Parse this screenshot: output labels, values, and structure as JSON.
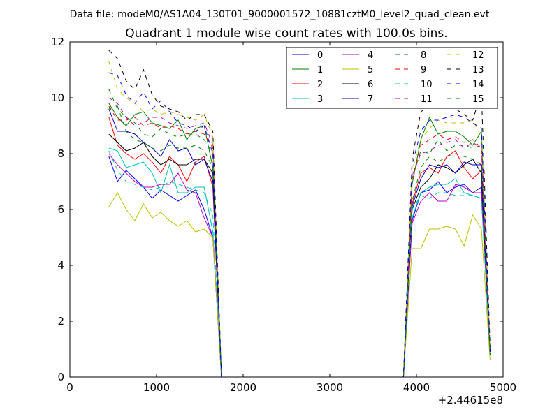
{
  "chart_data": {
    "type": "line",
    "suptitle": "Data file: modeM0/AS1A04_130T01_9000001572_10881cztM0_level2_quad_clean.evt",
    "title": "Quadrant 1 module wise count rates with 100.0s bins.",
    "xlabel": "",
    "ylabel": "",
    "x_offset_label": "+2.44615e8",
    "xlim": [
      0,
      5000
    ],
    "ylim": [
      0,
      12
    ],
    "x_ticks": [
      "0",
      "1000",
      "2000",
      "3000",
      "4000",
      "5000"
    ],
    "y_ticks": [
      "0",
      "2",
      "4",
      "6",
      "8",
      "10",
      "12"
    ],
    "grid": false,
    "legend_position": "top-right",
    "x": [
      450,
      550,
      650,
      750,
      850,
      950,
      1050,
      1150,
      1250,
      1350,
      1450,
      1550,
      1650,
      1750,
      3850,
      3950,
      4050,
      4150,
      4250,
      4350,
      4450,
      4550,
      4650,
      4750,
      4850
    ],
    "series": [
      {
        "name": "0",
        "color": "#0000ff",
        "dash": "solid",
        "values": [
          7.9,
          7.0,
          7.4,
          7.1,
          6.8,
          6.4,
          6.7,
          6.5,
          6.3,
          6.5,
          6.7,
          6.0,
          5.0,
          0.0,
          0.0,
          5.6,
          6.6,
          6.7,
          7.0,
          6.6,
          6.8,
          6.9,
          6.6,
          6.8,
          0.9
        ]
      },
      {
        "name": "1",
        "color": "#008000",
        "dash": "solid",
        "values": [
          9.8,
          9.3,
          9.0,
          9.4,
          9.5,
          9.1,
          9.0,
          8.9,
          9.2,
          8.5,
          8.9,
          9.0,
          7.5,
          0.0,
          0.0,
          6.9,
          8.5,
          9.3,
          8.7,
          8.8,
          8.8,
          8.6,
          8.3,
          8.8,
          1.0
        ]
      },
      {
        "name": "2",
        "color": "#ff0000",
        "dash": "solid",
        "values": [
          9.3,
          8.3,
          8.0,
          7.8,
          8.0,
          7.7,
          7.3,
          7.9,
          7.6,
          7.0,
          7.7,
          7.9,
          6.8,
          0.0,
          0.0,
          6.2,
          7.3,
          7.5,
          7.3,
          7.9,
          8.1,
          7.5,
          7.1,
          7.4,
          0.9
        ]
      },
      {
        "name": "3",
        "color": "#00bfbf",
        "dash": "solid",
        "values": [
          8.2,
          8.1,
          7.5,
          7.6,
          7.7,
          7.3,
          6.6,
          7.6,
          6.6,
          6.6,
          6.8,
          6.8,
          5.2,
          0.0,
          0.0,
          5.7,
          6.6,
          6.8,
          6.9,
          6.9,
          7.1,
          6.6,
          6.5,
          6.4,
          0.8
        ]
      },
      {
        "name": "4",
        "color": "#bf00bf",
        "dash": "solid",
        "values": [
          8.0,
          7.6,
          7.3,
          7.0,
          6.8,
          6.8,
          6.9,
          6.9,
          7.3,
          6.7,
          6.6,
          5.7,
          5.0,
          0.0,
          0.0,
          5.5,
          6.3,
          6.6,
          6.3,
          6.3,
          6.9,
          6.8,
          6.6,
          6.6,
          0.9
        ]
      },
      {
        "name": "5",
        "color": "#bfbf00",
        "dash": "solid",
        "values": [
          6.1,
          6.6,
          6.0,
          5.6,
          6.2,
          5.7,
          5.9,
          5.6,
          5.4,
          5.6,
          5.2,
          5.3,
          5.0,
          0.0,
          0.0,
          4.6,
          4.6,
          5.3,
          5.3,
          5.4,
          5.3,
          4.7,
          5.8,
          5.3,
          0.6
        ]
      },
      {
        "name": "6",
        "color": "#000000",
        "dash": "solid",
        "values": [
          8.7,
          8.4,
          8.1,
          8.2,
          8.4,
          7.9,
          7.6,
          7.8,
          7.6,
          7.6,
          7.8,
          7.8,
          7.3,
          0.0,
          0.0,
          6.0,
          6.8,
          7.1,
          7.6,
          7.5,
          7.3,
          7.6,
          7.8,
          7.3,
          0.9
        ]
      },
      {
        "name": "7",
        "color": "#0000cc",
        "dash": "solid",
        "values": [
          9.6,
          8.8,
          8.8,
          8.7,
          8.4,
          8.2,
          7.9,
          8.5,
          8.1,
          8.2,
          7.6,
          7.8,
          7.0,
          0.0,
          0.0,
          6.1,
          7.1,
          7.6,
          7.5,
          7.6,
          7.3,
          7.7,
          7.6,
          7.6,
          0.9
        ]
      },
      {
        "name": "8",
        "color": "#008000",
        "dash": "dashed",
        "values": [
          10.3,
          9.6,
          9.3,
          9.1,
          8.7,
          8.6,
          8.9,
          8.7,
          8.6,
          8.7,
          8.7,
          8.5,
          8.0,
          0.0,
          0.0,
          7.1,
          8.1,
          8.0,
          8.5,
          8.1,
          8.3,
          8.3,
          8.2,
          8.3,
          1.0
        ]
      },
      {
        "name": "9",
        "color": "#ff0000",
        "dash": "dashed",
        "values": [
          9.7,
          9.2,
          9.2,
          9.3,
          9.0,
          9.1,
          8.9,
          9.0,
          8.9,
          8.7,
          8.8,
          8.7,
          8.2,
          0.0,
          0.0,
          7.1,
          8.3,
          8.5,
          8.7,
          8.5,
          8.6,
          8.4,
          8.5,
          8.2,
          1.0
        ]
      },
      {
        "name": "10",
        "color": "#00bfbf",
        "dash": "dashed",
        "values": [
          8.1,
          7.4,
          7.0,
          6.9,
          6.8,
          6.7,
          6.8,
          7.0,
          6.9,
          6.8,
          6.7,
          6.6,
          5.8,
          0.0,
          0.0,
          6.0,
          6.5,
          6.4,
          6.6,
          6.6,
          6.5,
          6.5,
          6.5,
          6.4,
          0.8
        ]
      },
      {
        "name": "11",
        "color": "#bf00bf",
        "dash": "dashed",
        "values": [
          10.0,
          9.8,
          9.3,
          9.0,
          9.1,
          9.3,
          9.3,
          9.1,
          9.0,
          8.9,
          9.0,
          9.1,
          8.3,
          0.0,
          0.0,
          7.2,
          8.0,
          8.1,
          8.3,
          8.4,
          8.5,
          8.2,
          8.4,
          8.2,
          1.0
        ]
      },
      {
        "name": "12",
        "color": "#bfbf00",
        "dash": "dashed",
        "values": [
          11.3,
          10.3,
          10.0,
          9.8,
          9.5,
          9.6,
          9.4,
          9.5,
          9.4,
          9.3,
          9.2,
          9.4,
          8.6,
          0.0,
          0.0,
          7.4,
          8.5,
          8.9,
          9.2,
          9.1,
          9.1,
          9.1,
          9.2,
          8.6,
          1.0
        ]
      },
      {
        "name": "13",
        "color": "#000000",
        "dash": "dashed",
        "values": [
          11.7,
          11.4,
          10.6,
          10.3,
          11.0,
          10.1,
          9.7,
          9.6,
          9.5,
          9.2,
          9.4,
          9.4,
          8.8,
          0.0,
          0.0,
          7.8,
          9.5,
          9.7,
          10.1,
          10.0,
          9.6,
          9.4,
          9.2,
          10.2,
          1.1
        ]
      },
      {
        "name": "14",
        "color": "#0000ff",
        "dash": "dashed",
        "values": [
          10.9,
          10.8,
          10.1,
          9.8,
          10.2,
          9.6,
          9.9,
          9.5,
          9.1,
          9.0,
          8.8,
          9.0,
          8.0,
          0.0,
          0.0,
          7.6,
          8.8,
          9.2,
          9.2,
          9.3,
          9.4,
          9.3,
          9.1,
          8.9,
          1.0
        ]
      },
      {
        "name": "15",
        "color": "#008000",
        "dash": "dashed",
        "values": [
          9.6,
          9.7,
          8.8,
          8.5,
          8.4,
          8.2,
          8.1,
          8.3,
          8.2,
          8.2,
          8.3,
          8.1,
          7.5,
          0.0,
          0.0,
          6.3,
          7.5,
          7.9,
          7.7,
          7.9,
          8.0,
          7.9,
          7.8,
          7.6,
          0.8
        ]
      }
    ]
  }
}
